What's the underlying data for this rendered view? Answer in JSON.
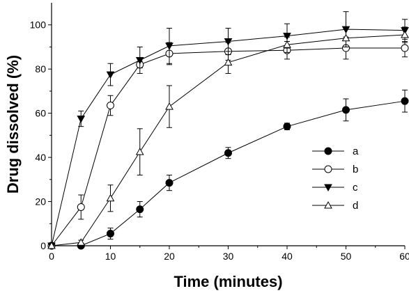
{
  "chart_data": {
    "type": "line",
    "xlabel": "Time (minutes)",
    "ylabel": "Drug dissolved (%)",
    "xlim": [
      0,
      60
    ],
    "ylim": [
      0,
      110
    ],
    "xticks": [
      0,
      10,
      20,
      30,
      40,
      50,
      60
    ],
    "yticks": [
      0,
      20,
      40,
      60,
      80,
      100
    ],
    "grid": false,
    "legend": "center-right",
    "series": [
      {
        "name": "a",
        "marker": "filled-circle",
        "x": [
          0,
          5,
          10,
          15,
          20,
          30,
          40,
          50,
          60
        ],
        "values": [
          0,
          0,
          5.5,
          16.5,
          28.5,
          42,
          54,
          61.5,
          65.5
        ],
        "errors": [
          0,
          0,
          2.5,
          3.5,
          3.5,
          2.5,
          1.5,
          5,
          5
        ]
      },
      {
        "name": "b",
        "marker": "open-circle",
        "x": [
          0,
          5,
          10,
          15,
          20,
          30,
          40,
          50,
          60
        ],
        "values": [
          0,
          17.5,
          63.5,
          82,
          87,
          88,
          88.5,
          89.5,
          89.5
        ],
        "errors": [
          0,
          5.5,
          4.5,
          1.5,
          5,
          4,
          4,
          5,
          4
        ]
      },
      {
        "name": "c",
        "marker": "filled-triangle-down",
        "x": [
          0,
          5,
          10,
          15,
          20,
          30,
          40,
          50,
          60
        ],
        "values": [
          0,
          57.5,
          77.5,
          84,
          90.5,
          92.5,
          95,
          98,
          97.5
        ],
        "errors": [
          0,
          3.5,
          5,
          6,
          8,
          6,
          5.5,
          8,
          5
        ]
      },
      {
        "name": "d",
        "marker": "open-triangle-up",
        "x": [
          0,
          5,
          10,
          15,
          20,
          30,
          40,
          50,
          60
        ],
        "values": [
          0,
          1.5,
          21.5,
          42.5,
          63,
          83,
          91,
          94,
          95.5
        ],
        "errors": [
          0,
          1,
          6,
          10.5,
          9.5,
          5,
          3.5,
          4,
          3.5
        ]
      }
    ]
  }
}
